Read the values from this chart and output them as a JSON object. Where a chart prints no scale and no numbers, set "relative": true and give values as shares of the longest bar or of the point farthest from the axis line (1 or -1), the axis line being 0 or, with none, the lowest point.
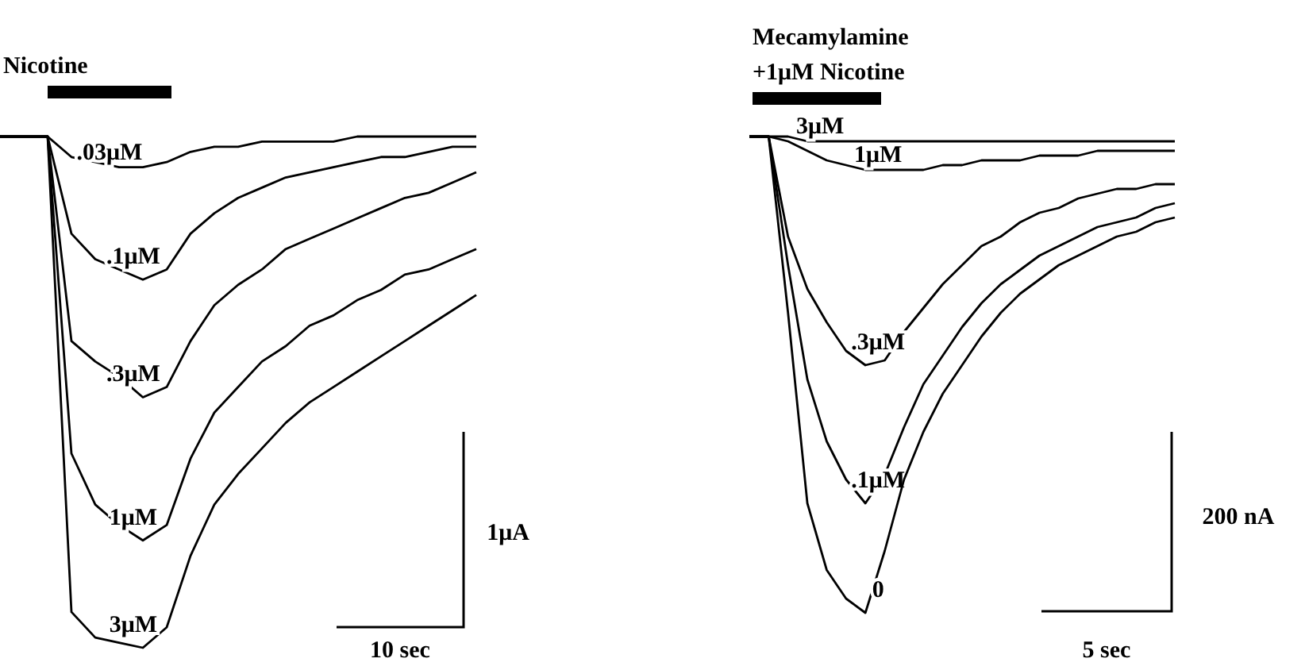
{
  "chart_data": [
    {
      "type": "line",
      "relative": true,
      "categories": [
        null,
        null,
        null,
        null,
        null,
        null,
        null,
        null,
        null,
        null,
        null,
        null,
        null,
        null,
        null,
        null,
        null,
        null,
        null,
        null,
        null
      ],
      "series": [
        {
          "name": ".03μM",
          "color": "#000000",
          "values": [
            1,
            1,
            1,
            0.96,
            0.95,
            0.94,
            0.94,
            0.95,
            0.97,
            0.98,
            0.98,
            0.99,
            0.99,
            0.99,
            0.99,
            1,
            1,
            1,
            1,
            1,
            1
          ]
        },
        {
          "name": ".1μM",
          "color": "#000000",
          "values": [
            1,
            1,
            1,
            0.81,
            0.76,
            0.74,
            0.72,
            0.74,
            0.81,
            0.85,
            0.88,
            0.9,
            0.92,
            0.93,
            0.94,
            0.95,
            0.96,
            0.96,
            0.97,
            0.98,
            0.98
          ]
        },
        {
          "name": ".3μM",
          "color": "#000000",
          "values": [
            1,
            1,
            1,
            0.6,
            0.56,
            0.53,
            0.49,
            0.51,
            0.6,
            0.67,
            0.71,
            0.74,
            0.78,
            0.8,
            0.82,
            0.84,
            0.86,
            0.88,
            0.89,
            0.91,
            0.93
          ]
        },
        {
          "name": "1μM",
          "color": "#000000",
          "values": [
            1,
            1,
            1,
            0.38,
            0.28,
            0.24,
            0.21,
            0.24,
            0.37,
            0.46,
            0.51,
            0.56,
            0.59,
            0.63,
            0.65,
            0.68,
            0.7,
            0.73,
            0.74,
            0.76,
            0.78
          ]
        },
        {
          "name": "3μM",
          "color": "#000000",
          "values": [
            1,
            1,
            1,
            0.07,
            0.02,
            0.01,
            0,
            0.04,
            0.18,
            0.28,
            0.34,
            0.39,
            0.44,
            0.48,
            0.51,
            0.54,
            0.57,
            0.6,
            0.63,
            0.66,
            0.69
          ]
        }
      ],
      "annotations": [
        "Nicotine",
        "1μA",
        "10 sec"
      ]
    },
    {
      "type": "line",
      "relative": true,
      "categories": [
        null,
        null,
        null,
        null,
        null,
        null,
        null,
        null,
        null,
        null,
        null,
        null,
        null,
        null,
        null,
        null,
        null,
        null,
        null,
        null,
        null,
        null,
        null
      ],
      "series": [
        {
          "name": "3μM",
          "color": "#000000",
          "values": [
            1,
            1,
            1,
            0.99,
            0.99,
            0.99,
            0.99,
            0.99,
            0.99,
            0.99,
            0.99,
            0.99,
            0.99,
            0.99,
            0.99,
            0.99,
            0.99,
            0.99,
            0.99,
            0.99,
            0.99,
            0.99,
            0.99
          ]
        },
        {
          "name": "1μM",
          "color": "#000000",
          "values": [
            1,
            1,
            0.99,
            0.97,
            0.95,
            0.94,
            0.93,
            0.93,
            0.93,
            0.93,
            0.94,
            0.94,
            0.95,
            0.95,
            0.95,
            0.96,
            0.96,
            0.96,
            0.97,
            0.97,
            0.97,
            0.97,
            0.97
          ]
        },
        {
          "name": ".3μM",
          "color": "#000000",
          "values": [
            1,
            1,
            0.79,
            0.68,
            0.61,
            0.55,
            0.52,
            0.53,
            0.59,
            0.64,
            0.69,
            0.73,
            0.77,
            0.79,
            0.82,
            0.84,
            0.85,
            0.87,
            0.88,
            0.89,
            0.89,
            0.9,
            0.9
          ]
        },
        {
          "name": ".1μM",
          "color": "#000000",
          "values": [
            1,
            1,
            0.73,
            0.49,
            0.36,
            0.28,
            0.23,
            0.29,
            0.39,
            0.48,
            0.54,
            0.6,
            0.65,
            0.69,
            0.72,
            0.75,
            0.77,
            0.79,
            0.81,
            0.82,
            0.83,
            0.85,
            0.86
          ]
        },
        {
          "name": "0",
          "color": "#000000",
          "values": [
            1,
            1,
            0.63,
            0.23,
            0.09,
            0.03,
            0,
            0.13,
            0.28,
            0.38,
            0.46,
            0.52,
            0.58,
            0.63,
            0.67,
            0.7,
            0.73,
            0.75,
            0.77,
            0.79,
            0.8,
            0.82,
            0.83
          ]
        }
      ],
      "annotations": [
        "Mecamylamine",
        "+1μM Nicotine",
        "200 nA",
        "5 sec"
      ]
    }
  ]
}
